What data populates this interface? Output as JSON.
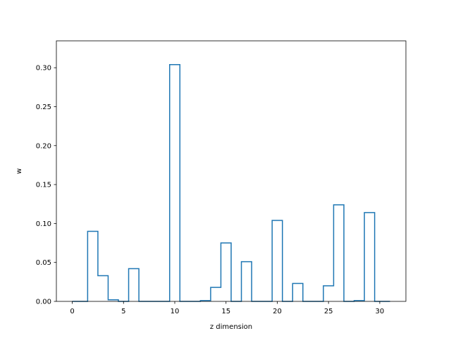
{
  "chart_data": {
    "type": "bar",
    "style": "step-outline",
    "xlabel": "z dimension",
    "ylabel": "w",
    "xlim": [
      -1.55,
      32.55
    ],
    "ylim": [
      0,
      0.3345
    ],
    "xticks": [
      0,
      5,
      10,
      15,
      20,
      25,
      30
    ],
    "yticks": [
      0.0,
      0.05,
      0.1,
      0.15,
      0.2,
      0.25,
      0.3
    ],
    "grid": false,
    "series_color": "#1f77b4",
    "x": [
      0,
      1,
      2,
      3,
      4,
      5,
      6,
      7,
      8,
      9,
      10,
      11,
      12,
      13,
      14,
      15,
      16,
      17,
      18,
      19,
      20,
      21,
      22,
      23,
      24,
      25,
      26,
      27,
      28,
      29,
      30,
      31
    ],
    "values": [
      0.0,
      0.0,
      0.09,
      0.033,
      0.002,
      0.0,
      0.042,
      0.0,
      0.0,
      0.0,
      0.304,
      0.0,
      0.0,
      0.001,
      0.018,
      0.075,
      0.0,
      0.051,
      0.0,
      0.0,
      0.104,
      0.0,
      0.023,
      0.0,
      0.0,
      0.02,
      0.124,
      0.0,
      0.001,
      0.114,
      0.0,
      0.0
    ]
  }
}
